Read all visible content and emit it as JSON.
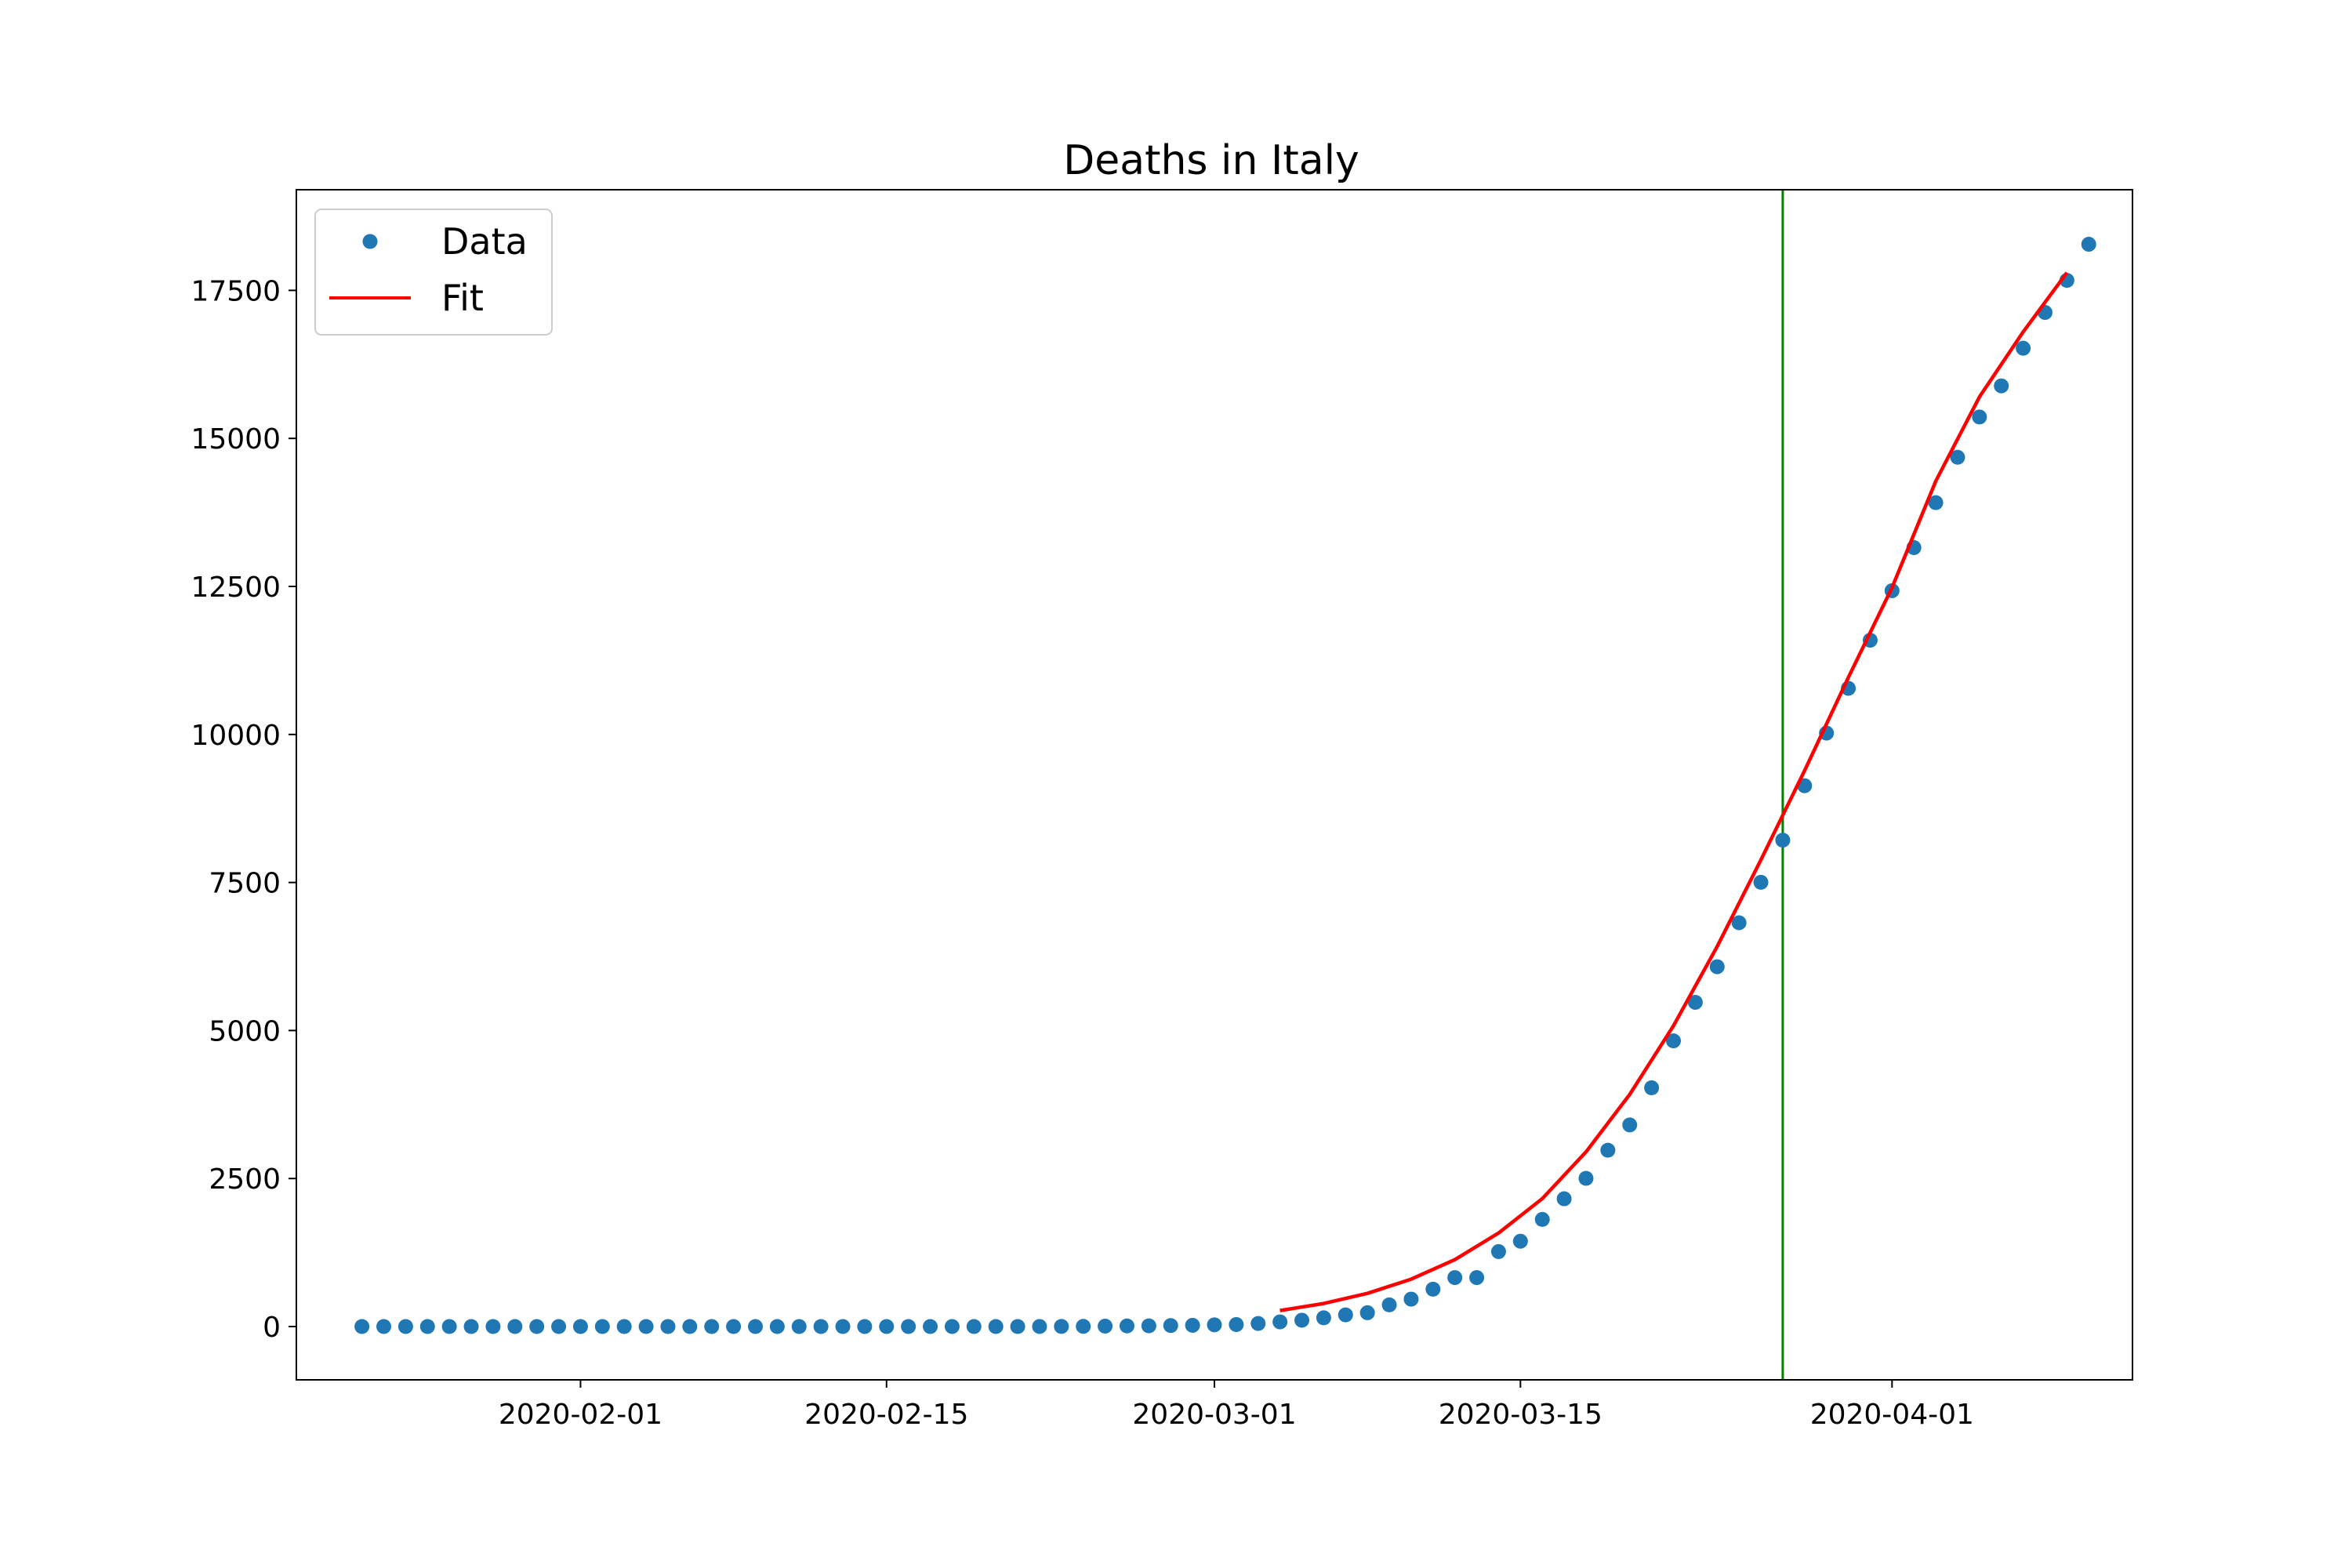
{
  "chart_data": {
    "type": "scatter",
    "title": "Deaths in Italy",
    "xlabel": "",
    "ylabel": "",
    "x_axis": "date",
    "xlim": [
      "2020-01-19",
      "2020-04-12"
    ],
    "ylim": [
      -900,
      19200
    ],
    "x_ticks": [
      "2020-02-01",
      "2020-02-15",
      "2020-03-01",
      "2020-03-15",
      "2020-04-01"
    ],
    "y_ticks": [
      0,
      2500,
      5000,
      7500,
      10000,
      12500,
      15000,
      17500
    ],
    "grid": false,
    "legend": {
      "placement": "top-left",
      "entries": [
        "Data",
        "Fit"
      ]
    },
    "vertical_line": {
      "x": "2020-03-27",
      "color": "#008000"
    },
    "series": [
      {
        "name": "Data",
        "kind": "scatter",
        "color": "#1f77b4",
        "x_start": "2020-01-22",
        "y": [
          0,
          0,
          0,
          0,
          0,
          0,
          0,
          0,
          0,
          0,
          0,
          0,
          0,
          0,
          0,
          0,
          0,
          0,
          0,
          0,
          0,
          0,
          0,
          0,
          0,
          0,
          0,
          0,
          0,
          0,
          0,
          1,
          2,
          3,
          7,
          10,
          12,
          17,
          21,
          29,
          34,
          52,
          79,
          107,
          148,
          197,
          233,
          366,
          463,
          631,
          827,
          827,
          1266,
          1441,
          1809,
          2158,
          2503,
          2978,
          3405,
          4032,
          4825,
          5476,
          6077,
          6820,
          7503,
          8215,
          9134,
          10023,
          10779,
          11591,
          12428,
          13155,
          13915,
          14681,
          15362,
          15887,
          16523,
          17127,
          17669,
          18279
        ]
      },
      {
        "name": "Fit",
        "kind": "line",
        "color": "#ff0000",
        "x": [
          "2020-03-04",
          "2020-03-06",
          "2020-03-08",
          "2020-03-10",
          "2020-03-12",
          "2020-03-14",
          "2020-03-16",
          "2020-03-18",
          "2020-03-20",
          "2020-03-22",
          "2020-03-24",
          "2020-03-26",
          "2020-03-28",
          "2020-03-30",
          "2020-04-01",
          "2020-04-03",
          "2020-04-05",
          "2020-04-07",
          "2020-04-09"
        ],
        "y": [
          270,
          390,
          560,
          800,
          1130,
          1580,
          2160,
          2950,
          3920,
          5080,
          6420,
          7880,
          9390,
          10960,
          12480,
          14280,
          15700,
          16800,
          17800
        ]
      }
    ]
  }
}
